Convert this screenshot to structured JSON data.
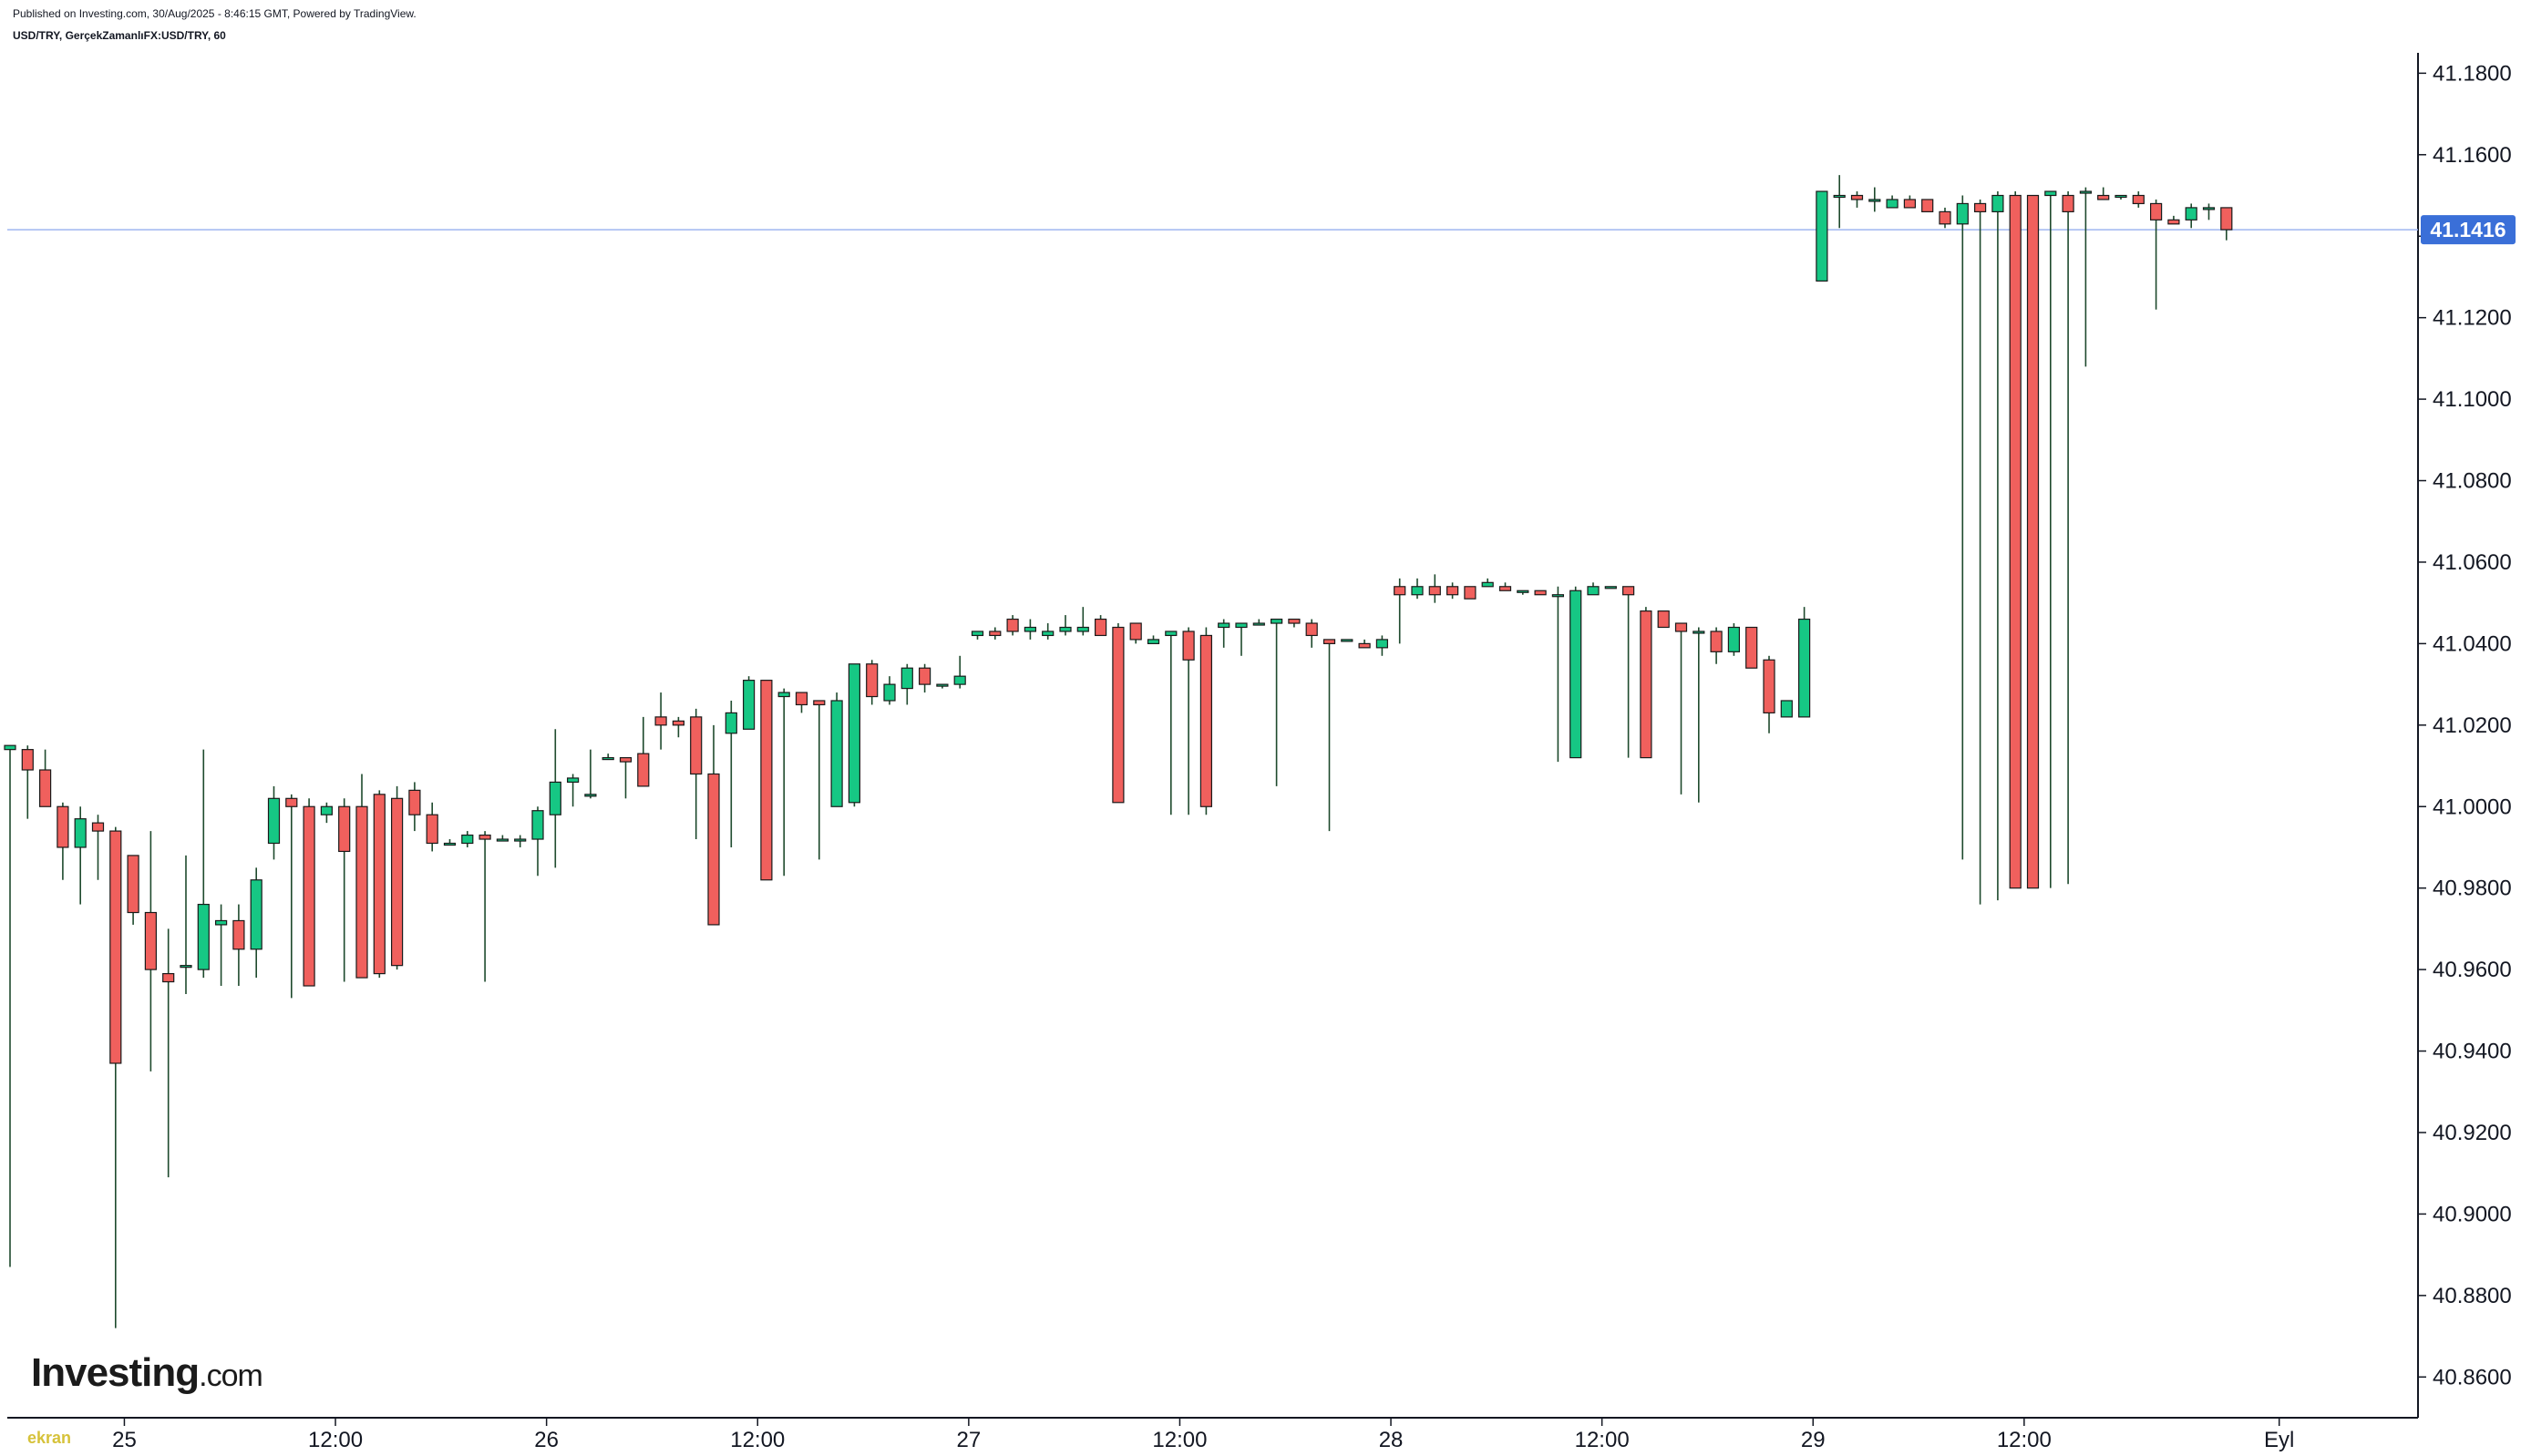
{
  "header": {
    "published": "Published on Investing.com, 30/Aug/2025 - 8:46:15 GMT, Powered by TradingView.",
    "symbol": "USD/TRY, GerçekZamanlıFX:USD/TRY, 60"
  },
  "logo": {
    "main": "Investing",
    "suffix": ".com"
  },
  "watermark": "ekran",
  "colors": {
    "up": "#16c784",
    "down": "#f0605d",
    "wick": "#1e4a2d",
    "last_price_bg": "#3a6fd8",
    "last_price_line": "#9fb6f0"
  },
  "chart_data": {
    "type": "candlestick",
    "interval": "60",
    "ylim": [
      40.85,
      41.185
    ],
    "y_ticks": [
      "41.1800",
      "41.1600",
      "41.1400",
      "41.1200",
      "41.1000",
      "41.0800",
      "41.0600",
      "41.0400",
      "41.0200",
      "41.0000",
      "40.9800",
      "40.9600",
      "40.9400",
      "40.9200",
      "40.9000",
      "40.8800",
      "40.8600"
    ],
    "x_ticks": [
      {
        "label": "25",
        "idx": 6.5
      },
      {
        "label": "12:00",
        "idx": 18.5
      },
      {
        "label": "26",
        "idx": 30.5
      },
      {
        "label": "12:00",
        "idx": 42.5
      },
      {
        "label": "27",
        "idx": 54.5
      },
      {
        "label": "12:00",
        "idx": 66.5
      },
      {
        "label": "28",
        "idx": 78.5
      },
      {
        "label": "12:00",
        "idx": 90.5
      },
      {
        "label": "29",
        "idx": 102.5
      },
      {
        "label": "12:00",
        "idx": 114.5
      },
      {
        "label": "Eyl",
        "idx": 129
      }
    ],
    "last_price": "41.1416",
    "candles": [
      [
        41.014,
        41.015,
        40.887,
        41.015
      ],
      [
        41.014,
        41.015,
        40.997,
        41.009
      ],
      [
        41.009,
        41.014,
        41.0,
        41.0
      ],
      [
        41.0,
        41.001,
        40.982,
        40.99
      ],
      [
        40.99,
        41.0,
        40.976,
        40.997
      ],
      [
        40.996,
        40.998,
        40.982,
        40.994
      ],
      [
        40.994,
        40.995,
        40.872,
        40.937
      ],
      [
        40.988,
        40.988,
        40.971,
        40.974
      ],
      [
        40.974,
        40.994,
        40.935,
        40.96
      ],
      [
        40.959,
        40.97,
        40.909,
        40.957
      ],
      [
        40.961,
        40.988,
        40.954,
        40.961
      ],
      [
        40.96,
        41.014,
        40.958,
        40.976
      ],
      [
        40.971,
        40.976,
        40.956,
        40.972
      ],
      [
        40.972,
        40.976,
        40.956,
        40.965
      ],
      [
        40.965,
        40.985,
        40.958,
        40.982
      ],
      [
        40.991,
        41.005,
        40.987,
        41.002
      ],
      [
        41.002,
        41.003,
        40.953,
        41.0
      ],
      [
        41.0,
        41.002,
        40.956,
        40.956
      ],
      [
        40.998,
        41.001,
        40.996,
        41.0
      ],
      [
        41.0,
        41.002,
        40.957,
        40.989
      ],
      [
        41.0,
        41.008,
        40.958,
        40.958
      ],
      [
        41.003,
        41.004,
        40.958,
        40.959
      ],
      [
        41.002,
        41.005,
        40.96,
        40.961
      ],
      [
        41.004,
        41.006,
        40.994,
        40.998
      ],
      [
        40.998,
        41.001,
        40.989,
        40.991
      ],
      [
        40.991,
        40.992,
        40.991,
        40.991
      ],
      [
        40.991,
        40.994,
        40.99,
        40.993
      ],
      [
        40.993,
        40.994,
        40.957,
        40.992
      ],
      [
        40.992,
        40.993,
        40.992,
        40.992
      ],
      [
        40.992,
        40.993,
        40.99,
        40.992
      ],
      [
        40.992,
        41.0,
        40.983,
        40.999
      ],
      [
        40.998,
        41.019,
        40.985,
        41.006
      ],
      [
        41.006,
        41.008,
        41.0,
        41.007
      ],
      [
        41.003,
        41.014,
        41.002,
        41.003
      ],
      [
        41.012,
        41.013,
        41.012,
        41.012
      ],
      [
        41.012,
        41.012,
        41.002,
        41.011
      ],
      [
        41.013,
        41.022,
        41.005,
        41.005
      ],
      [
        41.022,
        41.028,
        41.014,
        41.02
      ],
      [
        41.021,
        41.022,
        41.017,
        41.02
      ],
      [
        41.022,
        41.024,
        40.992,
        41.008
      ],
      [
        41.008,
        41.02,
        40.971,
        40.971
      ],
      [
        41.018,
        41.026,
        40.99,
        41.023
      ],
      [
        41.019,
        41.032,
        41.019,
        41.031
      ],
      [
        41.031,
        41.031,
        40.982,
        40.982
      ],
      [
        41.027,
        41.029,
        40.983,
        41.028
      ],
      [
        41.028,
        41.028,
        41.023,
        41.025
      ],
      [
        41.026,
        41.026,
        40.987,
        41.025
      ],
      [
        41.0,
        41.028,
        41.0,
        41.026
      ],
      [
        41.001,
        41.035,
        41.0,
        41.035
      ],
      [
        41.035,
        41.036,
        41.025,
        41.027
      ],
      [
        41.026,
        41.032,
        41.025,
        41.03
      ],
      [
        41.029,
        41.035,
        41.025,
        41.034
      ],
      [
        41.034,
        41.035,
        41.028,
        41.03
      ],
      [
        41.03,
        41.03,
        41.029,
        41.03
      ],
      [
        41.03,
        41.037,
        41.029,
        41.032
      ],
      [
        41.042,
        41.043,
        41.041,
        41.043
      ],
      [
        41.043,
        41.044,
        41.041,
        41.042
      ],
      [
        41.046,
        41.047,
        41.042,
        41.043
      ],
      [
        41.043,
        41.046,
        41.041,
        41.044
      ],
      [
        41.042,
        41.045,
        41.041,
        41.043
      ],
      [
        41.043,
        41.047,
        41.042,
        41.044
      ],
      [
        41.043,
        41.049,
        41.042,
        41.044
      ],
      [
        41.046,
        41.047,
        41.042,
        41.042
      ],
      [
        41.044,
        41.045,
        41.001,
        41.001
      ],
      [
        41.045,
        41.045,
        41.04,
        41.041
      ],
      [
        41.04,
        41.042,
        41.04,
        41.041
      ],
      [
        41.042,
        41.043,
        40.998,
        41.043
      ],
      [
        41.043,
        41.044,
        40.998,
        41.036
      ],
      [
        41.042,
        41.044,
        40.998,
        41.0
      ],
      [
        41.044,
        41.046,
        41.039,
        41.045
      ],
      [
        41.044,
        41.045,
        41.037,
        41.045
      ],
      [
        41.045,
        41.046,
        41.045,
        41.045
      ],
      [
        41.045,
        41.046,
        41.005,
        41.046
      ],
      [
        41.046,
        41.046,
        41.044,
        41.045
      ],
      [
        41.045,
        41.046,
        41.039,
        41.042
      ],
      [
        41.041,
        41.041,
        40.994,
        41.04
      ],
      [
        41.041,
        41.041,
        41.041,
        41.041
      ],
      [
        41.04,
        41.041,
        41.039,
        41.039
      ],
      [
        41.039,
        41.042,
        41.037,
        41.041
      ],
      [
        41.054,
        41.056,
        41.04,
        41.052
      ],
      [
        41.052,
        41.056,
        41.051,
        41.054
      ],
      [
        41.054,
        41.057,
        41.05,
        41.052
      ],
      [
        41.054,
        41.055,
        41.051,
        41.052
      ],
      [
        41.054,
        41.054,
        41.051,
        41.051
      ],
      [
        41.054,
        41.056,
        41.054,
        41.055
      ],
      [
        41.054,
        41.055,
        41.053,
        41.053
      ],
      [
        41.053,
        41.053,
        41.052,
        41.053
      ],
      [
        41.053,
        41.053,
        41.052,
        41.052
      ],
      [
        41.052,
        41.054,
        41.011,
        41.052
      ],
      [
        41.012,
        41.054,
        41.012,
        41.053
      ],
      [
        41.052,
        41.055,
        41.052,
        41.054
      ],
      [
        41.054,
        41.054,
        41.054,
        41.054
      ],
      [
        41.054,
        41.054,
        41.012,
        41.052
      ],
      [
        41.048,
        41.049,
        41.012,
        41.012
      ],
      [
        41.048,
        41.048,
        41.044,
        41.044
      ],
      [
        41.045,
        41.045,
        41.003,
        41.043
      ],
      [
        41.043,
        41.044,
        41.001,
        41.043
      ],
      [
        41.043,
        41.044,
        41.035,
        41.038
      ],
      [
        41.038,
        41.045,
        41.037,
        41.044
      ],
      [
        41.044,
        41.044,
        41.034,
        41.034
      ],
      [
        41.036,
        41.037,
        41.018,
        41.023
      ],
      [
        41.022,
        41.026,
        41.022,
        41.026
      ],
      [
        41.022,
        41.049,
        41.022,
        41.046
      ],
      [
        41.129,
        41.151,
        41.129,
        41.151
      ],
      [
        41.15,
        41.155,
        41.142,
        41.15
      ],
      [
        41.15,
        41.151,
        41.147,
        41.149
      ],
      [
        41.149,
        41.152,
        41.146,
        41.149
      ],
      [
        41.147,
        41.15,
        41.147,
        41.149
      ],
      [
        41.149,
        41.15,
        41.147,
        41.147
      ],
      [
        41.149,
        41.149,
        41.146,
        41.146
      ],
      [
        41.146,
        41.147,
        41.142,
        41.143
      ],
      [
        41.143,
        41.15,
        40.987,
        41.148
      ],
      [
        41.148,
        41.149,
        40.976,
        41.146
      ],
      [
        41.146,
        41.151,
        40.977,
        41.15
      ],
      [
        41.15,
        41.151,
        40.98,
        40.98
      ],
      [
        41.15,
        41.15,
        40.98,
        40.98
      ],
      [
        41.15,
        41.151,
        40.98,
        41.151
      ],
      [
        41.15,
        41.151,
        40.981,
        41.146
      ],
      [
        41.151,
        41.152,
        41.108,
        41.151
      ],
      [
        41.15,
        41.152,
        41.149,
        41.149
      ],
      [
        41.15,
        41.15,
        41.149,
        41.15
      ],
      [
        41.15,
        41.151,
        41.147,
        41.148
      ],
      [
        41.148,
        41.149,
        41.122,
        41.144
      ],
      [
        41.144,
        41.145,
        41.143,
        41.143
      ],
      [
        41.144,
        41.148,
        41.142,
        41.147
      ],
      [
        41.147,
        41.148,
        41.144,
        41.147
      ],
      [
        41.147,
        41.147,
        41.139,
        41.1416
      ]
    ]
  }
}
